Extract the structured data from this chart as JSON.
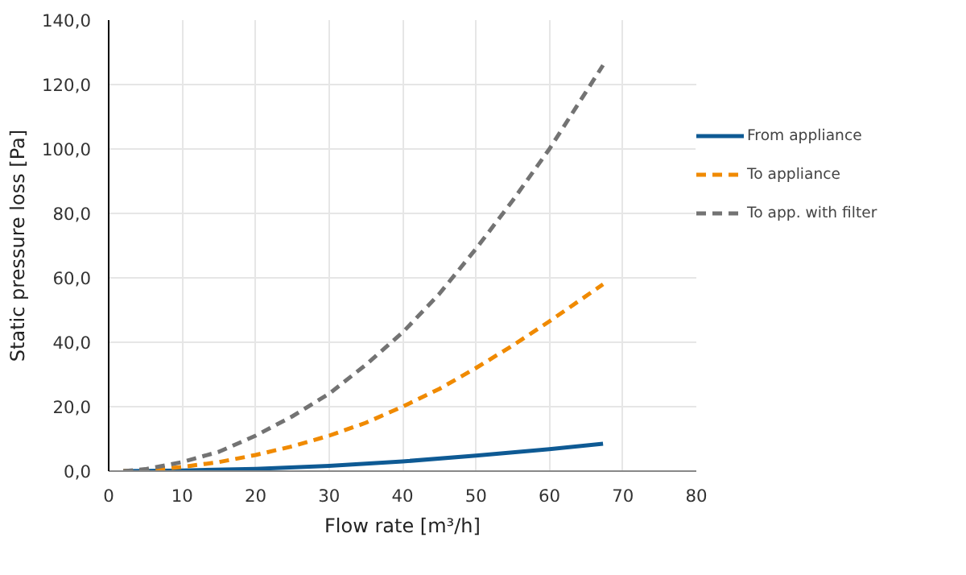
{
  "chart_data": {
    "type": "line",
    "xlabel": "Flow rate [m³/h]",
    "ylabel": "Static pressure loss [Pa]",
    "xlim": [
      0,
      80
    ],
    "xticks": [
      0,
      10,
      20,
      30,
      40,
      50,
      60,
      70,
      80
    ],
    "ylim": [
      0,
      140
    ],
    "yticks": [
      {
        "value": 0,
        "label": "0,0"
      },
      {
        "value": 20,
        "label": "20,0"
      },
      {
        "value": 40,
        "label": "40,0"
      },
      {
        "value": 60,
        "label": "60,0"
      },
      {
        "value": 80,
        "label": "80,0"
      },
      {
        "value": 100,
        "label": "100,0"
      },
      {
        "value": 120,
        "label": "120,0"
      },
      {
        "value": 140,
        "label": "140,0"
      }
    ],
    "grid": true,
    "legend": "right",
    "series": [
      {
        "name": "From appliance",
        "color": "#0e5a94",
        "line_style": "solid",
        "x": [
          2,
          10,
          20,
          30,
          40,
          50,
          60,
          67.3
        ],
        "values": [
          0,
          0.2,
          0.7,
          1.6,
          3,
          4.8,
          6.8,
          8.5
        ]
      },
      {
        "name": "To appliance",
        "color": "#f08a00",
        "line_style": "dashed",
        "x": [
          2,
          5,
          10,
          15,
          20,
          25,
          30,
          35,
          40,
          45,
          50,
          55,
          60,
          67.3
        ],
        "values": [
          0,
          0.3,
          1.3,
          2.8,
          5,
          7.7,
          11,
          15,
          20,
          25.5,
          32,
          39,
          46.5,
          58
        ]
      },
      {
        "name": "To app. with filter",
        "color": "#737373",
        "line_style": "dashed",
        "x": [
          2,
          5,
          10,
          15,
          20,
          25,
          30,
          35,
          40,
          45,
          50,
          55,
          60,
          67.3
        ],
        "values": [
          0,
          0.6,
          2.8,
          6,
          11,
          17,
          24,
          33,
          43,
          55,
          69,
          84,
          100,
          126
        ]
      }
    ]
  }
}
